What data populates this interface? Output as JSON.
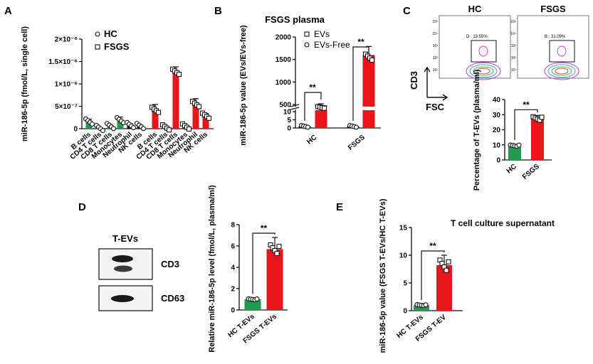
{
  "panels": {
    "a": "A",
    "b": "B",
    "c": "C",
    "d": "D",
    "e": "E"
  },
  "colors": {
    "hc": "#1f9a4e",
    "fsgs": "#e8151b",
    "marker_face": "#ffffff",
    "ink": "#111111"
  },
  "chart_data": [
    {
      "id": "A",
      "type": "bar",
      "title": "",
      "ylabel": "miR-186-5p (fmol/L, single cell)",
      "yticks": [
        "0",
        "5×10⁻⁷",
        "1×10⁻⁶",
        "1.5×10⁻⁶",
        "2×10⁻⁶"
      ],
      "ytick_values": [
        0,
        5e-07,
        1e-06,
        1.5e-06,
        2e-06
      ],
      "ylim": [
        0,
        2e-06
      ],
      "legend": [
        {
          "label": "HC",
          "marker": "circle"
        },
        {
          "label": "FSGS",
          "marker": "square"
        }
      ],
      "series": [
        {
          "name": "HC",
          "categories": [
            "B cells",
            "CD4 T cells",
            "CD8 T cells",
            "Monocytes",
            "Neutrophil",
            "NK cells"
          ],
          "values": [
            1.6e-07,
            1.5e-08,
            6e-08,
            1.9e-07,
            8e-08,
            6e-08
          ],
          "colors": [
            "#1f9a4e",
            "#1f9a4e",
            "#1f9a4e",
            "#1f9a4e",
            "#111111",
            "#111111"
          ]
        },
        {
          "name": "FSGS",
          "categories": [
            "B cells",
            "CD4 T cells",
            "CD8 T cells",
            "Monocytes",
            "Neutrophil",
            "NK cells"
          ],
          "values": [
            4.2e-07,
            3e-08,
            1.27e-06,
            5e-08,
            5.5e-07,
            2.9e-07
          ],
          "colors": [
            "#e8151b",
            "#e8151b",
            "#e8151b",
            "#e8151b",
            "#e8151b",
            "#e8151b"
          ]
        }
      ]
    },
    {
      "id": "B",
      "type": "bar",
      "title": "FSGS plasma",
      "ylabel": "miR-186-5p value (EVs/EVs-free)",
      "categories": [
        "HC",
        "FSGS"
      ],
      "yticks": [
        "0",
        "5",
        "10",
        "500",
        "1000",
        "1500",
        "2000"
      ],
      "broken_axis": true,
      "legend": [
        {
          "label": "EVs",
          "marker": "square"
        },
        {
          "label": "EVs-Free",
          "marker": "circle"
        }
      ],
      "series": [
        {
          "name": "EVs-Free",
          "values": [
            1,
            1
          ]
        },
        {
          "name": "EVs",
          "values": [
            180,
            1600
          ]
        }
      ],
      "significance": [
        "**",
        "**"
      ]
    },
    {
      "id": "C",
      "type": "flow_cytometry",
      "plots": [
        {
          "title": "HC",
          "gate_label": "D : 13.55%"
        },
        {
          "title": "FSGS",
          "gate_label": "B : 31.09%"
        }
      ],
      "xlabel": "FSC",
      "ylabel": "CD3",
      "yticks_small": [
        "10⁵",
        "10⁴",
        "10³",
        "10²",
        "10¹"
      ]
    },
    {
      "id": "C-bar",
      "type": "bar",
      "ylabel": "Percentage of T-EVs (plasma/ml)",
      "categories": [
        "HC",
        "FSGS"
      ],
      "values": [
        9.5,
        27.5
      ],
      "yticks": [
        "0",
        "10",
        "20",
        "30",
        "40"
      ],
      "ylim": [
        0,
        40
      ],
      "significance": "**"
    },
    {
      "id": "D-blot",
      "type": "western_blot",
      "title": "T-EVs",
      "bands": [
        "CD3",
        "CD63"
      ]
    },
    {
      "id": "D",
      "type": "bar",
      "ylabel": "Relative miR-186-5p level (fmol/L, plasma/ml)",
      "categories": [
        "HC T-EVs",
        "FSGS T-EVs"
      ],
      "values": [
        1.0,
        5.7
      ],
      "yticks": [
        "0",
        "2",
        "4",
        "6",
        "8"
      ],
      "ylim": [
        0,
        8
      ],
      "significance": "**"
    },
    {
      "id": "E",
      "type": "bar",
      "title": "T cell culture supernatant",
      "ylabel": "miR-186-5p value (FSGS T-EVs/HC T-EVs)",
      "categories": [
        "HC T-EVs",
        "FSGS T-EV"
      ],
      "values": [
        1.0,
        8.2
      ],
      "yticks": [
        "0",
        "5",
        "10",
        "15"
      ],
      "ylim": [
        0,
        15
      ],
      "significance": "**"
    }
  ]
}
